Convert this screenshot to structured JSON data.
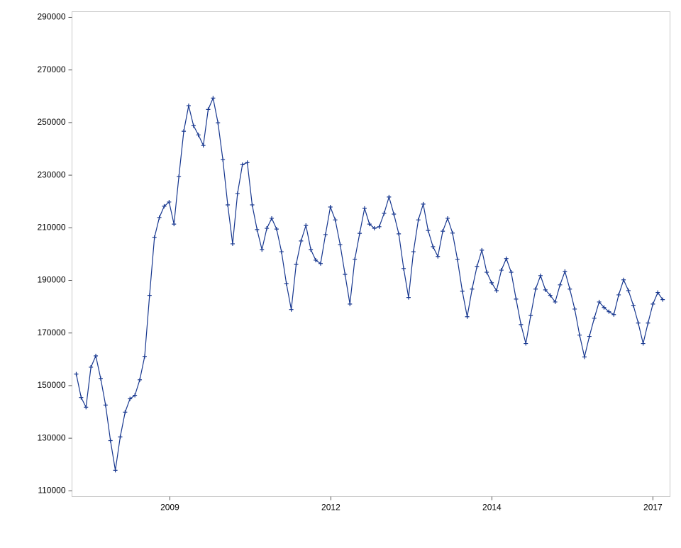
{
  "chart_data": {
    "type": "line",
    "x": [
      0,
      1,
      2,
      3,
      4,
      5,
      6,
      7,
      8,
      9,
      10,
      11,
      12,
      13,
      14,
      15,
      16,
      17,
      18,
      19,
      20,
      21,
      22,
      23,
      24,
      25,
      26,
      27,
      28,
      29,
      30,
      31,
      32,
      33,
      34,
      35,
      36,
      37,
      38,
      39,
      40,
      41,
      42,
      43,
      44,
      45,
      46,
      47,
      48,
      49,
      50,
      51,
      52,
      53,
      54,
      55,
      56,
      57,
      58,
      59,
      60,
      61,
      62,
      63,
      64,
      65,
      66,
      67,
      68,
      69,
      70,
      71,
      72,
      73,
      74,
      75,
      76,
      77,
      78,
      79,
      80,
      81,
      82,
      83,
      84,
      85,
      86,
      87,
      88,
      89,
      90,
      91,
      92,
      93,
      94,
      95,
      96,
      97,
      98,
      99,
      100,
      101,
      102,
      103,
      104,
      105,
      106,
      107,
      108,
      109,
      110,
      111,
      112,
      113,
      114,
      115,
      116,
      117,
      118,
      119,
      120
    ],
    "series": [
      {
        "color": "#17378f",
        "marker": "plus",
        "values": [
          154400,
          145500,
          141800,
          157000,
          161300,
          152700,
          142600,
          129100,
          117800,
          130500,
          139900,
          145000,
          146300,
          152200,
          161100,
          184300,
          206300,
          213900,
          218200,
          219800,
          211400,
          229500,
          246700,
          256400,
          248800,
          245300,
          241300,
          255000,
          259300,
          249900,
          235900,
          218700,
          203900,
          223000,
          234000,
          234800,
          218700,
          209300,
          201700,
          209800,
          213600,
          209500,
          200900,
          188800,
          178900,
          196100,
          205000,
          210900,
          201700,
          197700,
          196400,
          207400,
          217900,
          213000,
          203600,
          192300,
          181000,
          198000,
          207900,
          217400,
          211400,
          209800,
          210400,
          215500,
          221700,
          215200,
          207700,
          194500,
          183500,
          200900,
          213000,
          219000,
          209000,
          202800,
          199100,
          208700,
          213600,
          208000,
          198000,
          185900,
          176200,
          186700,
          195300,
          201500,
          193100,
          189100,
          186100,
          193900,
          198300,
          193100,
          182900,
          173200,
          166000,
          176700,
          186700,
          191800,
          186400,
          184300,
          181800,
          188300,
          193400,
          186700,
          179100,
          169200,
          160900,
          168700,
          175600,
          181800,
          179700,
          178100,
          177000,
          184500,
          190200,
          186100,
          180500,
          173800,
          166000,
          173800,
          181000,
          185400,
          182700
        ]
      }
    ],
    "xlim": [
      -0.87,
      121.5
    ],
    "xticks": [
      {
        "value": 19.15,
        "label": "2009"
      },
      {
        "value": 52.1,
        "label": "2012"
      },
      {
        "value": 85.05,
        "label": "2014"
      },
      {
        "value": 118,
        "label": "2017"
      }
    ],
    "ylim": [
      107800,
      292150
    ],
    "yticks": [
      110000,
      130000,
      150000,
      170000,
      190000,
      210000,
      230000,
      250000,
      270000,
      290000
    ]
  }
}
